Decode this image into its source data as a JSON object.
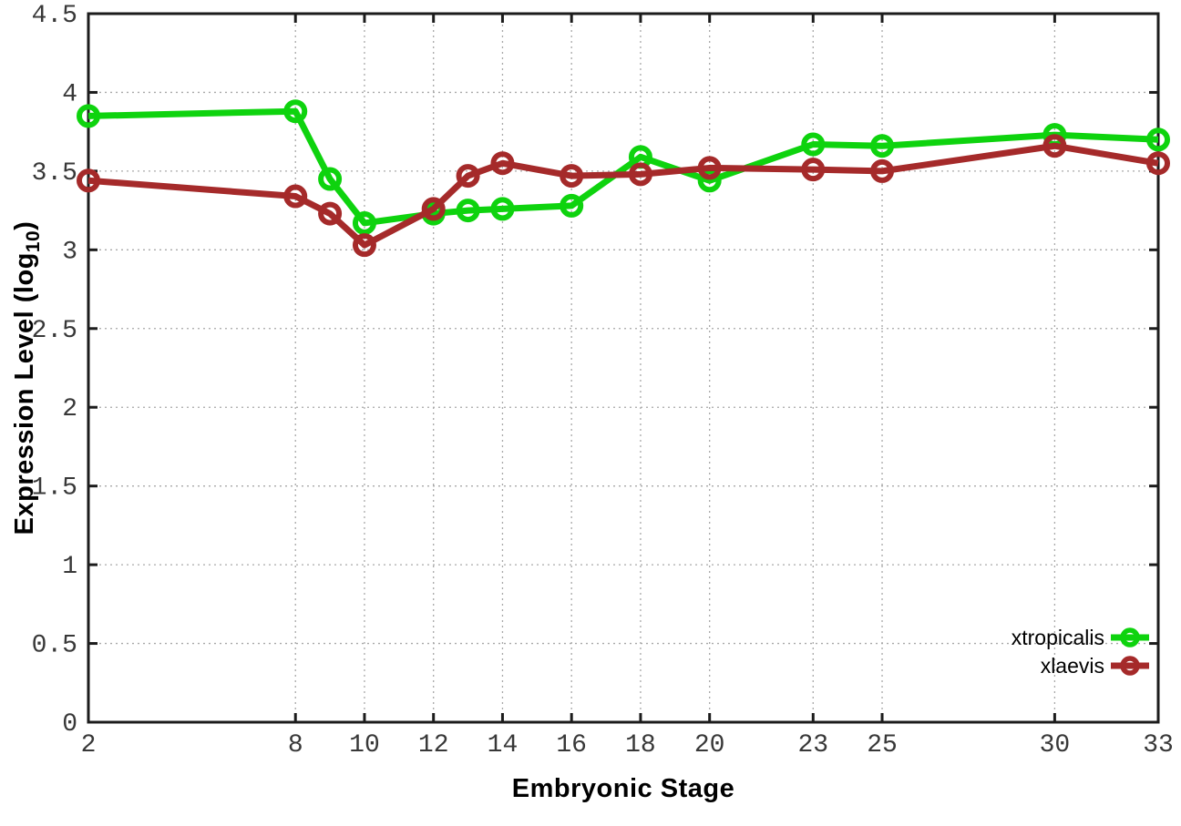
{
  "figure": {
    "background": "#ffffff",
    "xlabel": "Embryonic Stage",
    "ylabel_main": "Expression Level (log",
    "ylabel_sub": "10",
    "ylabel_close": ")"
  },
  "chart_data": {
    "type": "line",
    "title": "",
    "xlabel": "Embryonic Stage",
    "ylabel": "Expression Level (log10)",
    "xlim": [
      2,
      33
    ],
    "ylim": [
      0,
      4.5
    ],
    "grid": true,
    "legend_position": "inside-bottom-right",
    "x_ticks": [
      2,
      8,
      10,
      12,
      14,
      16,
      18,
      20,
      23,
      25,
      30,
      33
    ],
    "x_tick_labels": [
      "2",
      "8",
      "10",
      "12",
      "14",
      "16",
      "18",
      "20",
      "23",
      "25",
      "30",
      "33"
    ],
    "y_ticks": [
      0,
      0.5,
      1,
      1.5,
      2,
      2.5,
      3,
      3.5,
      4,
      4.5
    ],
    "y_tick_labels": [
      "0",
      "0.5",
      "1",
      "1.5",
      "2",
      "2.5",
      "3",
      "3.5",
      "4",
      "4.5"
    ],
    "x": [
      2,
      8,
      9,
      10,
      12,
      13,
      14,
      16,
      18,
      20,
      23,
      25,
      30,
      33
    ],
    "series": [
      {
        "name": "xtropicalis",
        "color": "#0ed30e",
        "values": [
          3.85,
          3.88,
          3.45,
          3.17,
          3.23,
          3.25,
          3.26,
          3.28,
          3.59,
          3.44,
          3.67,
          3.66,
          3.73,
          3.7
        ]
      },
      {
        "name": "xlaevis",
        "color": "#a52a2a",
        "values": [
          3.44,
          3.34,
          3.23,
          3.03,
          3.26,
          3.47,
          3.55,
          3.47,
          3.48,
          3.52,
          3.51,
          3.5,
          3.66,
          3.55
        ]
      }
    ],
    "axis_color": "#1c1c1c",
    "grid_color": "#a8a8a8",
    "tick_label_color": "#383838"
  }
}
